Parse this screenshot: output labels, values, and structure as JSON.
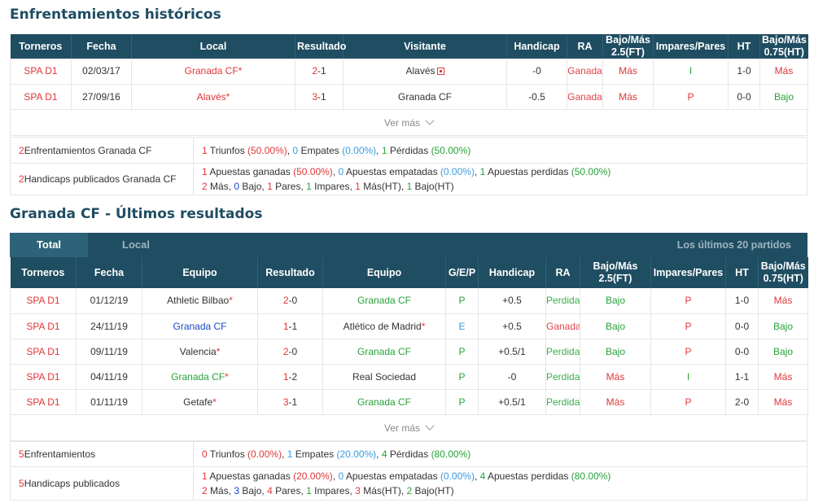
{
  "h2h": {
    "title": "Enfrentamientos históricos",
    "headers": [
      "Torneros",
      "Fecha",
      "Local",
      "Resultado",
      "Visitante",
      "Handicap",
      "RA",
      "Bajo/Más\n2.5(FT)",
      "Impares/Pares",
      "HT",
      "Bajo/Más\n0.75(HT)"
    ],
    "rows": [
      {
        "league": "SPA D1",
        "date": "02/03/17",
        "home": "Granada CF",
        "home_star": "*",
        "score_a": "2",
        "score_sep": "-1",
        "away": "Alavés",
        "handicap": "-0",
        "ra": "Ganada",
        "ou25": "Más",
        "oe": "I",
        "ht": "1-0",
        "ou075": "Más"
      },
      {
        "league": "SPA D1",
        "date": "27/09/16",
        "home": "Alavés",
        "home_star": "*",
        "score_a": "3",
        "score_sep": "-1",
        "away": "Granada CF",
        "handicap": "-0.5",
        "ra": "Ganada",
        "ou25": "Más",
        "oe": "P",
        "ht": "0-0",
        "ou075": "Bajo"
      }
    ],
    "ver_mas": "Ver más",
    "summary": {
      "row1_label_n": "2",
      "row1_label": " Enfrentamientos Granada CF",
      "row1": {
        "w": "1",
        "w_t": " Triunfos ",
        "w_p": "(50.00%)",
        "d": "0",
        "d_t": " Empates ",
        "d_p": "(0.00%)",
        "l": "1",
        "l_t": " Pérdidas ",
        "l_p": "(50.00%)"
      },
      "row2_label_n": "2",
      "row2_label": " Handicaps publicados Granada CF",
      "row2a": {
        "w": "1",
        "w_t": " Apuestas ganadas ",
        "w_p": "(50.00%)",
        "d": "0",
        "d_t": " Apuestas empatadas ",
        "d_p": "(0.00%)",
        "l": "1",
        "l_t": " Apuestas perdidas ",
        "l_p": "(50.00%)"
      },
      "row2b": {
        "mas": "2",
        "mas_t": " Más, ",
        "bajo": "0",
        "bajo_t": " Bajo, ",
        "pares": "1",
        "pares_t": " Pares, ",
        "imp": "1",
        "imp_t": " Impares, ",
        "masht": "1",
        "masht_t": " Más(HT), ",
        "bajoht": "1",
        "bajoht_t": " Bajo(HT)"
      }
    }
  },
  "recent": {
    "title": "Granada CF - Últimos resultados",
    "tab_total": "Total",
    "tab_local": "Local",
    "tab_right": "Los últimos 20 partidos",
    "headers": [
      "Torneros",
      "Fecha",
      "Equipo",
      "Resultado",
      "Equipo",
      "G/E/P",
      "Handicap",
      "RA",
      "Bajo/Más\n2.5(FT)",
      "Impares/Pares",
      "HT",
      "Bajo/Más\n0.75(HT)"
    ],
    "rows": [
      {
        "league": "SPA D1",
        "date": "01/12/19",
        "home": "Athletic Bilbao",
        "home_star": "*",
        "home_c": "",
        "score_a": "2",
        "score_b": "-0",
        "away": "Granada CF",
        "away_star": "",
        "away_c": "green",
        "gep": "P",
        "gep_c": "green",
        "handicap": "+0.5",
        "ra": "Perdida",
        "ra_c": "ra-green",
        "ou25": "Bajo",
        "ou25_c": "green",
        "oe": "P",
        "oe_c": "red",
        "ht": "1-0",
        "ou075": "Más",
        "ou075_c": "red"
      },
      {
        "league": "SPA D1",
        "date": "24/11/19",
        "home": "Granada CF",
        "home_star": "",
        "home_c": "blue",
        "score_a": "1",
        "score_b": "-1",
        "away": "Atlético de Madrid",
        "away_star": "*",
        "away_c": "",
        "gep": "E",
        "gep_c": "lblue",
        "handicap": "+0.5",
        "ra": "Ganada",
        "ra_c": "ra-red",
        "ou25": "Bajo",
        "ou25_c": "green",
        "oe": "P",
        "oe_c": "red",
        "ht": "0-0",
        "ou075": "Bajo",
        "ou075_c": "green"
      },
      {
        "league": "SPA D1",
        "date": "09/11/19",
        "home": "Valencia",
        "home_star": "*",
        "home_c": "",
        "score_a": "2",
        "score_b": "-0",
        "away": "Granada CF",
        "away_star": "",
        "away_c": "green",
        "gep": "P",
        "gep_c": "green",
        "handicap": "+0.5/1",
        "ra": "Perdida",
        "ra_c": "ra-green",
        "ou25": "Bajo",
        "ou25_c": "green",
        "oe": "P",
        "oe_c": "red",
        "ht": "0-0",
        "ou075": "Bajo",
        "ou075_c": "green"
      },
      {
        "league": "SPA D1",
        "date": "04/11/19",
        "home": "Granada CF",
        "home_star": "*",
        "home_c": "green",
        "score_a": "1",
        "score_b": "-2",
        "away": "Real Sociedad",
        "away_star": "",
        "away_c": "",
        "gep": "P",
        "gep_c": "green",
        "handicap": "-0",
        "ra": "Perdida",
        "ra_c": "ra-green",
        "ou25": "Más",
        "ou25_c": "red",
        "oe": "I",
        "oe_c": "green",
        "ht": "1-1",
        "ou075": "Más",
        "ou075_c": "red"
      },
      {
        "league": "SPA D1",
        "date": "01/11/19",
        "home": "Getafe",
        "home_star": "*",
        "home_c": "",
        "score_a": "3",
        "score_b": "-1",
        "away": "Granada CF",
        "away_star": "",
        "away_c": "green",
        "gep": "P",
        "gep_c": "green",
        "handicap": "+0.5/1",
        "ra": "Perdida",
        "ra_c": "ra-green",
        "ou25": "Más",
        "ou25_c": "red",
        "oe": "P",
        "oe_c": "red",
        "ht": "2-0",
        "ou075": "Más",
        "ou075_c": "red"
      }
    ],
    "ver_mas": "Ver más",
    "summary": {
      "row1_label_n": "5",
      "row1_label": " Enfrentamientos",
      "row1": {
        "w": "0",
        "w_t": " Triunfos ",
        "w_p": "(0.00%)",
        "d": "1",
        "d_t": " Empates ",
        "d_p": "(20.00%)",
        "l": "4",
        "l_t": " Pérdidas ",
        "l_p": "(80.00%)"
      },
      "row2_label_n": "5",
      "row2_label": " Handicaps publicados",
      "row2a": {
        "w": "1",
        "w_t": " Apuestas ganadas ",
        "w_p": "(20.00%)",
        "d": "0",
        "d_t": " Apuestas empatadas ",
        "d_p": "(0.00%)",
        "l": "4",
        "l_t": " Apuestas perdidas ",
        "l_p": "(80.00%)"
      },
      "row2b": {
        "mas": "2",
        "mas_t": " Más, ",
        "bajo": "3",
        "bajo_t": " Bajo, ",
        "pares": "4",
        "pares_t": " Pares, ",
        "imp": "1",
        "imp_t": " Impares, ",
        "masht": "3",
        "masht_t": " Más(HT), ",
        "bajoht": "2",
        "bajoht_t": " Bajo(HT)"
      }
    }
  }
}
